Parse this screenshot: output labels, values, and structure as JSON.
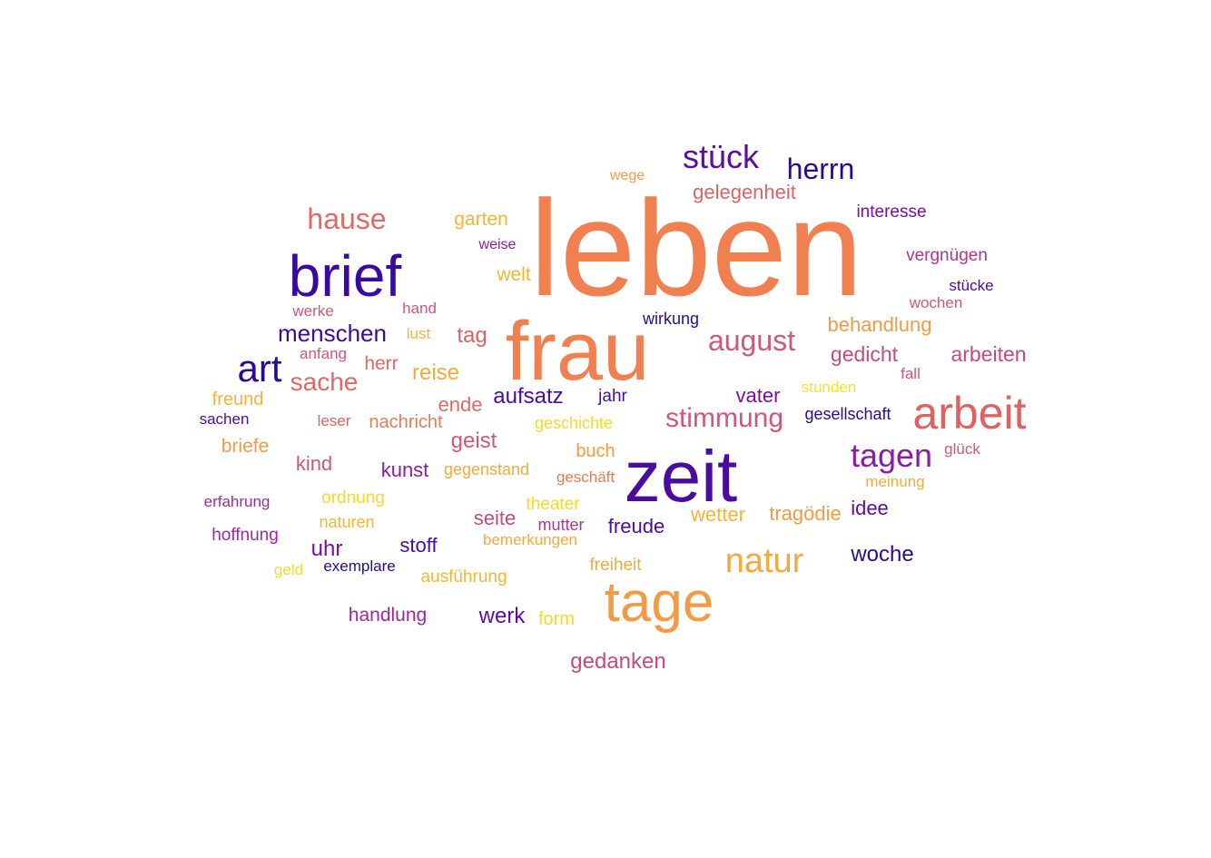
{
  "chart_data": {
    "type": "wordcloud",
    "words": [
      {
        "text": "leben",
        "color": "#F0804F"
      },
      {
        "text": "frau",
        "color": "#F0804F"
      },
      {
        "text": "zeit",
        "color": "#4A0C9E"
      },
      {
        "text": "brief",
        "color": "#3A0AA0"
      },
      {
        "text": "tage",
        "color": "#F39A46"
      },
      {
        "text": "arbeit",
        "color": "#DE6262"
      },
      {
        "text": "natur",
        "color": "#F4A93E"
      },
      {
        "text": "art",
        "color": "#2D0A8C"
      },
      {
        "text": "tagen",
        "color": "#8C1DA3"
      },
      {
        "text": "stück",
        "color": "#5E0AA6"
      },
      {
        "text": "hause",
        "color": "#E06A63"
      },
      {
        "text": "august",
        "color": "#D0567A"
      },
      {
        "text": "herrn",
        "color": "#2D0A8C"
      },
      {
        "text": "stimmung",
        "color": "#D0567A"
      },
      {
        "text": "menschen",
        "color": "#3A0AA0"
      },
      {
        "text": "sache",
        "color": "#E06A63"
      },
      {
        "text": "woche",
        "color": "#2D0A8C"
      },
      {
        "text": "gedanken",
        "color": "#C64A7E"
      },
      {
        "text": "aufsatz",
        "color": "#4A0C9E"
      },
      {
        "text": "tag",
        "color": "#DE6262"
      },
      {
        "text": "reise",
        "color": "#F4A93E"
      },
      {
        "text": "arbeiten",
        "color": "#C64A7E"
      },
      {
        "text": "behandlung",
        "color": "#F39A46"
      },
      {
        "text": "gedicht",
        "color": "#C64A7E"
      },
      {
        "text": "geist",
        "color": "#D0567A"
      },
      {
        "text": "freude",
        "color": "#4A0C9E"
      },
      {
        "text": "wetter",
        "color": "#F6B435"
      },
      {
        "text": "tragödie",
        "color": "#F39A46"
      },
      {
        "text": "idee",
        "color": "#5E0AA6"
      },
      {
        "text": "werk",
        "color": "#5E0AA6"
      },
      {
        "text": "gelegenheit",
        "color": "#DE6262"
      },
      {
        "text": "kunst",
        "color": "#8C1DA3"
      },
      {
        "text": "vater",
        "color": "#7A0EA4"
      },
      {
        "text": "kind",
        "color": "#D0567A"
      },
      {
        "text": "handlung",
        "color": "#9C2A9E"
      },
      {
        "text": "uhr",
        "color": "#7A0EA4"
      },
      {
        "text": "stoff",
        "color": "#4A0C9E"
      },
      {
        "text": "seite",
        "color": "#C64A7E"
      },
      {
        "text": "ende",
        "color": "#E06A63"
      },
      {
        "text": "garten",
        "color": "#F6B435"
      },
      {
        "text": "welt",
        "color": "#F6B435"
      },
      {
        "text": "herr",
        "color": "#E06A63"
      },
      {
        "text": "briefe",
        "color": "#F39A46"
      },
      {
        "text": "nachricht",
        "color": "#E87A5A"
      },
      {
        "text": "buch",
        "color": "#F39A46"
      },
      {
        "text": "interesse",
        "color": "#7A0EA4"
      },
      {
        "text": "vergnügen",
        "color": "#B0358F"
      },
      {
        "text": "freund",
        "color": "#F6B435"
      },
      {
        "text": "form",
        "color": "#F7D72B"
      },
      {
        "text": "hoffnung",
        "color": "#9C2A9E"
      },
      {
        "text": "jahr",
        "color": "#4A0C9E"
      },
      {
        "text": "ausführung",
        "color": "#F6B435"
      },
      {
        "text": "freiheit",
        "color": "#F4A93E"
      },
      {
        "text": "wirkung",
        "color": "#2D0A8C"
      },
      {
        "text": "gesellschaft",
        "color": "#2D0A8C"
      },
      {
        "text": "ordnung",
        "color": "#F7D72B"
      },
      {
        "text": "theater",
        "color": "#F7D72B"
      },
      {
        "text": "geschichte",
        "color": "#F7D72B"
      },
      {
        "text": "gegenstand",
        "color": "#F4A93E"
      },
      {
        "text": "mutter",
        "color": "#B0358F"
      },
      {
        "text": "naturen",
        "color": "#F6B435"
      },
      {
        "text": "bemerkungen",
        "color": "#F4A93E"
      },
      {
        "text": "meinung",
        "color": "#F4A93E"
      },
      {
        "text": "geschäft",
        "color": "#E87A5A"
      },
      {
        "text": "stücke",
        "color": "#4A0C9E"
      },
      {
        "text": "wochen",
        "color": "#D0567A"
      },
      {
        "text": "fall",
        "color": "#D0567A"
      },
      {
        "text": "glück",
        "color": "#D0567A"
      },
      {
        "text": "stunden",
        "color": "#F7E02A"
      },
      {
        "text": "wege",
        "color": "#F39A46"
      },
      {
        "text": "weise",
        "color": "#8C1DA3"
      },
      {
        "text": "hand",
        "color": "#D0567A"
      },
      {
        "text": "werke",
        "color": "#D0567A"
      },
      {
        "text": "lust",
        "color": "#F6B435"
      },
      {
        "text": "anfang",
        "color": "#D0567A"
      },
      {
        "text": "sachen",
        "color": "#4A0C9E"
      },
      {
        "text": "leser",
        "color": "#DE6262"
      },
      {
        "text": "erfahrung",
        "color": "#9C2A9E"
      },
      {
        "text": "exemplare",
        "color": "#2D0A8C"
      },
      {
        "text": "geld",
        "color": "#F7D72B"
      }
    ]
  }
}
